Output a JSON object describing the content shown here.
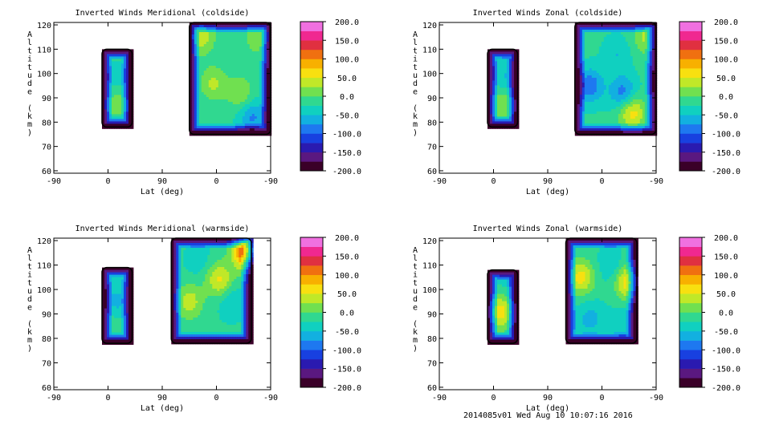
{
  "footer": "2014085v01 Wed Aug 10 10:07:16 2016",
  "chart_data": [
    {
      "type": "heatmap",
      "title": "Inverted Winds Meridional (coldside)",
      "xlabel": "Lat (deg)",
      "ylabel": "Altitude (km)",
      "x_tick_labels": [
        "-90",
        "0",
        "90",
        "0",
        "-90"
      ],
      "y_ticks": [
        60,
        70,
        80,
        90,
        100,
        110,
        120
      ],
      "ylim": [
        59,
        121
      ],
      "colorbar_ticks": [
        "200.0",
        "150.0",
        "100.0",
        "50.0",
        "0.0",
        "-50.0",
        "-100.0",
        "-150.0",
        "-200.0"
      ],
      "colorbar_range": [
        -200,
        200
      ],
      "regions": [
        {
          "lat": [
            -10,
            40
          ],
          "alt": [
            78,
            110
          ],
          "peaks": [
            [
              15,
              88,
              35
            ],
            [
              15,
              97,
              -20
            ]
          ]
        },
        {
          "lat": [
            135,
            270
          ],
          "alt": [
            75,
            121
          ],
          "peaks": [
            [
              155,
              115,
              60
            ],
            [
              175,
              96,
              50
            ],
            [
              220,
              92,
              45
            ],
            [
              250,
              115,
              45
            ],
            [
              240,
              82,
              -60
            ]
          ]
        }
      ]
    },
    {
      "type": "heatmap",
      "title": "Inverted Winds Zonal (coldside)",
      "xlabel": "Lat (deg)",
      "ylabel": "Altitude (km)",
      "x_tick_labels": [
        "-90",
        "0",
        "90",
        "0",
        "-90"
      ],
      "y_ticks": [
        60,
        70,
        80,
        90,
        100,
        110,
        120
      ],
      "ylim": [
        59,
        121
      ],
      "colorbar_ticks": [
        "200.0",
        "150.0",
        "100.0",
        "50.0",
        "0.0",
        "-50.0",
        "-100.0",
        "-150.0",
        "-200.0"
      ],
      "colorbar_range": [
        -200,
        200
      ],
      "regions": [
        {
          "lat": [
            -10,
            40
          ],
          "alt": [
            78,
            110
          ],
          "peaks": [
            [
              15,
              88,
              45
            ],
            [
              20,
              98,
              -35
            ]
          ]
        },
        {
          "lat": [
            135,
            270
          ],
          "alt": [
            75,
            121
          ],
          "peaks": [
            [
              160,
              95,
              -75
            ],
            [
              215,
              92,
              -70
            ],
            [
              255,
              115,
              55
            ],
            [
              230,
              84,
              85
            ],
            [
              205,
              108,
              -30
            ]
          ]
        }
      ]
    },
    {
      "type": "heatmap",
      "title": "Inverted Winds Meridional (warmside)",
      "xlabel": "Lat (deg)",
      "ylabel": "Altitude (km)",
      "x_tick_labels": [
        "-90",
        "0",
        "90",
        "0",
        "-90"
      ],
      "y_ticks": [
        60,
        70,
        80,
        90,
        100,
        110,
        120
      ],
      "ylim": [
        59,
        121
      ],
      "colorbar_ticks": [
        "200.0",
        "150.0",
        "100.0",
        "50.0",
        "0.0",
        "-50.0",
        "-100.0",
        "-150.0",
        "-200.0"
      ],
      "colorbar_range": [
        -200,
        200
      ],
      "regions": [
        {
          "lat": [
            -10,
            40
          ],
          "alt": [
            78,
            109
          ],
          "peaks": [
            [
              15,
              95,
              -40
            ],
            [
              10,
              86,
              15
            ]
          ]
        },
        {
          "lat": [
            105,
            238
          ],
          "alt": [
            78,
            121
          ],
          "peaks": [
            [
              135,
              95,
              60
            ],
            [
              185,
              104,
              75
            ],
            [
              230,
              116,
              180
            ],
            [
              205,
              95,
              -30
            ],
            [
              150,
              112,
              -20
            ]
          ]
        }
      ]
    },
    {
      "type": "heatmap",
      "title": "Inverted Winds Zonal (warmside)",
      "xlabel": "Lat (deg)",
      "ylabel": "Altitude (km)",
      "x_tick_labels": [
        "-90",
        "0",
        "90",
        "0",
        "-90"
      ],
      "y_ticks": [
        60,
        70,
        80,
        90,
        100,
        110,
        120
      ],
      "ylim": [
        59,
        121
      ],
      "colorbar_ticks": [
        "200.0",
        "150.0",
        "100.0",
        "50.0",
        "0.0",
        "-50.0",
        "-100.0",
        "-150.0",
        "-200.0"
      ],
      "colorbar_range": [
        -200,
        200
      ],
      "regions": [
        {
          "lat": [
            -10,
            40
          ],
          "alt": [
            78,
            108
          ],
          "peaks": [
            [
              10,
              91,
              85
            ],
            [
              20,
              102,
              -15
            ]
          ]
        },
        {
          "lat": [
            120,
            238
          ],
          "alt": [
            78,
            121
          ],
          "peaks": [
            [
              145,
              105,
              80
            ],
            [
              225,
              103,
              95
            ],
            [
              160,
              88,
              -40
            ],
            [
              195,
              110,
              -30
            ],
            [
              215,
              86,
              -30
            ]
          ]
        }
      ]
    }
  ]
}
